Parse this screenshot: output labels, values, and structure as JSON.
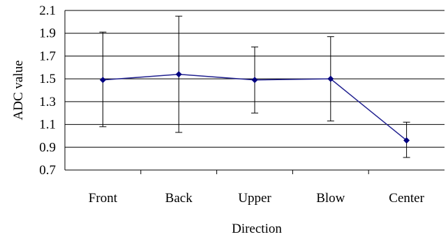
{
  "chart_data": {
    "type": "line",
    "title": "",
    "xlabel": "Direction",
    "ylabel": "ADC value",
    "categories": [
      "Front",
      "Back",
      "Upper",
      "Blow",
      "Center"
    ],
    "ylim": [
      0.7,
      2.1
    ],
    "yticks": [
      "0.7",
      "0.9",
      "1.1",
      "1.3",
      "1.5",
      "1.7",
      "1.9",
      "2.1"
    ],
    "grid": "horizontal",
    "legend": "none",
    "series": [
      {
        "values": [
          1.49,
          1.54,
          1.49,
          1.5,
          0.96
        ],
        "error_low": [
          1.08,
          1.03,
          1.2,
          1.13,
          0.81
        ],
        "error_high": [
          1.91,
          2.05,
          1.78,
          1.87,
          1.12
        ]
      }
    ],
    "colors": {
      "line": "#1f1f8f",
      "marker": "#000080",
      "error_bar": "#000000",
      "grid": "#000000",
      "axis": "#000000"
    }
  }
}
